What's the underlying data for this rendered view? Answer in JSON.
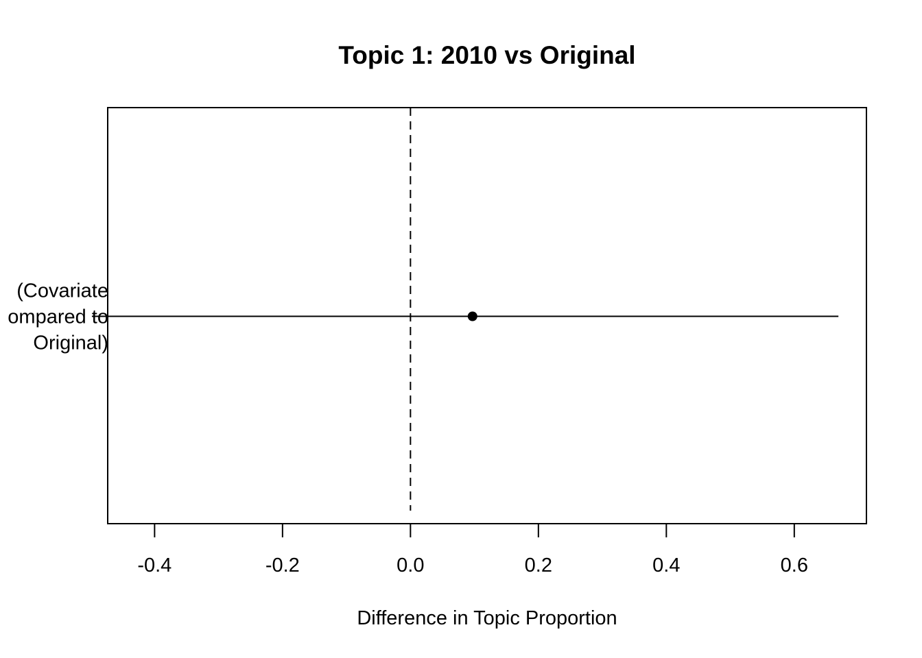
{
  "chart_data": {
    "type": "scatter",
    "title": "Topic 1: 2010 vs Original",
    "xlabel": "Difference in Topic Proportion",
    "ylabel": "",
    "xlim": [
      -0.4733,
      0.7128
    ],
    "x_ticks": [
      -0.4,
      -0.2,
      0.0,
      0.2,
      0.4,
      0.6
    ],
    "x_tick_labels": [
      "-0.4",
      "-0.2",
      "0.0",
      "0.2",
      "0.4",
      "0.6"
    ],
    "reference_line": {
      "x": 0.0,
      "style": "dashed"
    },
    "categories": [
      {
        "label_lines": [
          "(Covariate",
          "ompared to",
          "Original)"
        ],
        "estimate": 0.097,
        "ci": [
          -0.498,
          0.669
        ]
      }
    ],
    "grid": false,
    "legend": "none",
    "colors": {
      "ink": "#000000",
      "background": "#ffffff"
    }
  }
}
